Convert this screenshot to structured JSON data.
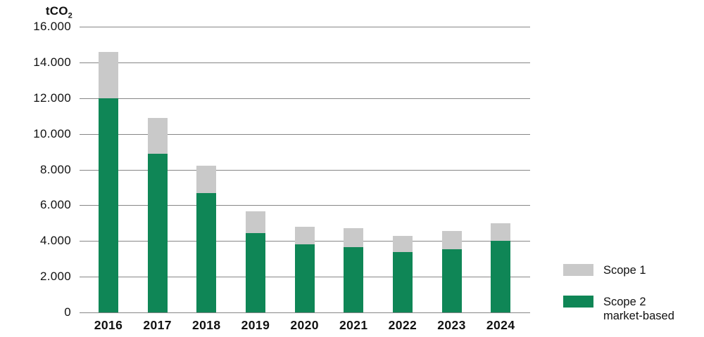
{
  "chart_data": {
    "type": "bar",
    "stacked": true,
    "ylabel_main": "tCO",
    "ylabel_sub": "2",
    "categories": [
      "2016",
      "2017",
      "2018",
      "2019",
      "2020",
      "2021",
      "2022",
      "2023",
      "2024"
    ],
    "series": [
      {
        "name": "Scope 1",
        "color": "#c9c9c9",
        "values": [
          2600,
          2000,
          1500,
          1200,
          1000,
          1050,
          900,
          1000,
          1000
        ]
      },
      {
        "name": "Scope 2 market-based",
        "color": "#0f8656",
        "values": [
          12000,
          8900,
          6700,
          4450,
          3800,
          3650,
          3400,
          3550,
          4000
        ]
      }
    ],
    "ylim": [
      0,
      16000
    ],
    "yticks": [
      {
        "value": 0,
        "label": "0"
      },
      {
        "value": 2000,
        "label": "2.000"
      },
      {
        "value": 4000,
        "label": "4.000"
      },
      {
        "value": 6000,
        "label": "6.000"
      },
      {
        "value": 8000,
        "label": "8.000"
      },
      {
        "value": 10000,
        "label": "10.000"
      },
      {
        "value": 12000,
        "label": "12.000"
      },
      {
        "value": 14000,
        "label": "14.000"
      },
      {
        "value": 16000,
        "label": "16.000"
      }
    ],
    "grid": "horizontal",
    "legend_position": "right-bottom",
    "gridline_color": "#868686"
  },
  "legend": {
    "items": [
      {
        "label_line1": "Scope 1",
        "label_line2": "",
        "color": "#c9c9c9"
      },
      {
        "label_line1": "Scope 2",
        "label_line2": "market-based",
        "color": "#0f8656"
      }
    ]
  }
}
